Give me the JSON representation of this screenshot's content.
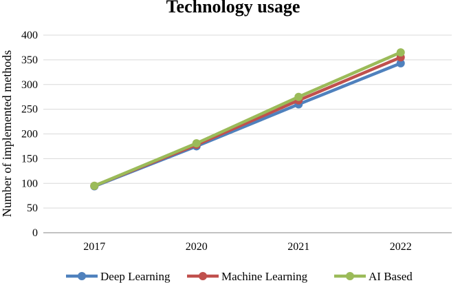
{
  "chart_data": {
    "type": "line",
    "title": "Technology usage",
    "xlabel": "",
    "ylabel": "Number of implemented methods",
    "categories": [
      "2017",
      "2020",
      "2021",
      "2022"
    ],
    "ylim": [
      0,
      400
    ],
    "yticks": [
      0,
      50,
      100,
      150,
      200,
      250,
      300,
      350,
      400
    ],
    "grid": true,
    "legend_position": "bottom",
    "series": [
      {
        "name": "Deep Learning",
        "color": "#4f81bd",
        "values": [
          94,
          175,
          260,
          343
        ]
      },
      {
        "name": "Machine Learning",
        "color": "#c0504d",
        "values": [
          95,
          178,
          268,
          355
        ]
      },
      {
        "name": "AI Based",
        "color": "#9bbb59",
        "values": [
          95,
          181,
          275,
          365
        ]
      }
    ]
  }
}
